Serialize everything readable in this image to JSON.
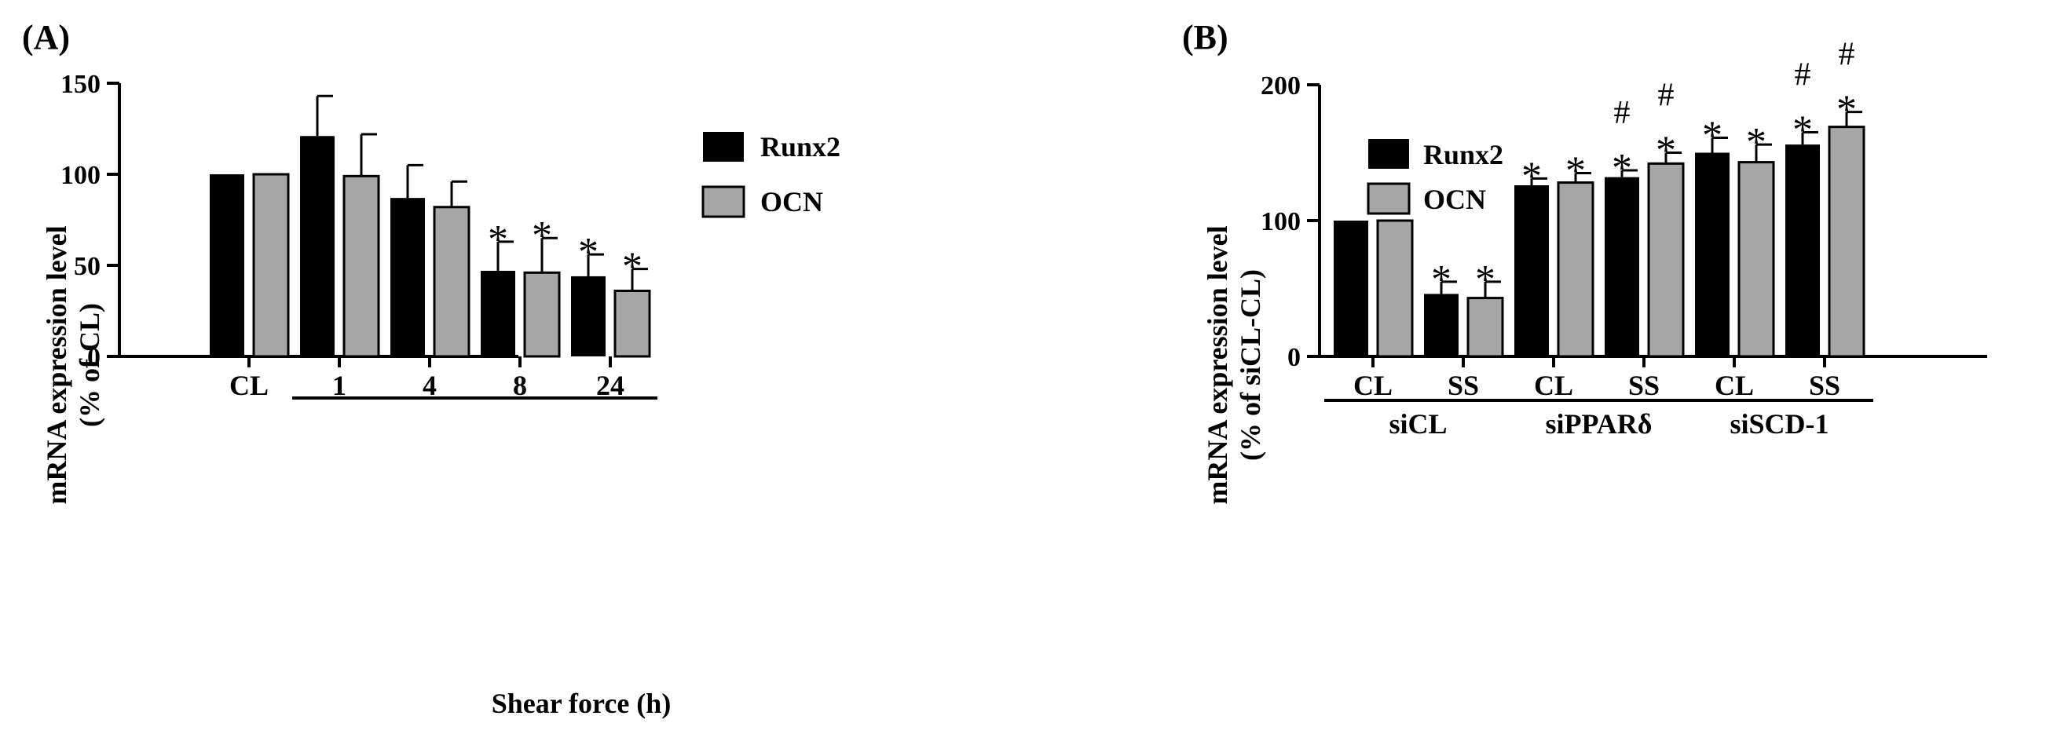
{
  "chart_data": [
    {
      "panel_label": "(A)",
      "type": "bar",
      "ylabel_line1": "mRNA expression level",
      "ylabel_line2": "(% of CL)",
      "xlabel": "Shear force (h)",
      "ylim": [
        0,
        150
      ],
      "yticks": [
        "0",
        "50",
        "100",
        "150"
      ],
      "categories": [
        "CL",
        "1",
        "4",
        "8",
        "24"
      ],
      "bracket_from_category": 1,
      "legend": [
        "Runx2",
        "OCN"
      ],
      "colors": [
        "#000000",
        "#a6a6a6"
      ],
      "series": [
        {
          "name": "Runx2",
          "values": [
            100,
            121,
            87,
            47,
            44
          ],
          "errors": [
            0,
            22,
            18,
            16,
            12
          ],
          "annotations": [
            "",
            "",
            "",
            "*",
            "*"
          ]
        },
        {
          "name": "OCN",
          "values": [
            100,
            99,
            82,
            46,
            36
          ],
          "errors": [
            0,
            23,
            14,
            19,
            12
          ],
          "annotations": [
            "",
            "",
            "",
            "*",
            "*"
          ]
        }
      ]
    },
    {
      "panel_label": "(B)",
      "type": "bar",
      "ylabel_line1": "mRNA expression level",
      "ylabel_line2": "(% of siCL-CL)",
      "xlabel": "",
      "ylim": [
        0,
        200
      ],
      "yticks": [
        "0",
        "100",
        "200"
      ],
      "categories": [
        "CL",
        "SS",
        "CL",
        "SS",
        "CL",
        "SS"
      ],
      "groups": [
        "siCL",
        "siPPARδ",
        "siSCD-1"
      ],
      "legend": [
        "Runx2",
        "OCN"
      ],
      "colors": [
        "#000000",
        "#a6a6a6"
      ],
      "series": [
        {
          "name": "Runx2",
          "values": [
            100,
            46,
            126,
            132,
            150,
            156
          ],
          "errors": [
            0,
            9,
            5,
            5,
            11,
            9
          ],
          "annotations": [
            "",
            "*",
            "*",
            "# *",
            "*",
            "# *"
          ]
        },
        {
          "name": "OCN",
          "values": [
            100,
            43,
            128,
            142,
            143,
            169
          ],
          "errors": [
            0,
            12,
            7,
            8,
            13,
            11
          ],
          "annotations": [
            "",
            "*",
            "*",
            "# *",
            "*",
            "# *"
          ]
        }
      ]
    }
  ]
}
